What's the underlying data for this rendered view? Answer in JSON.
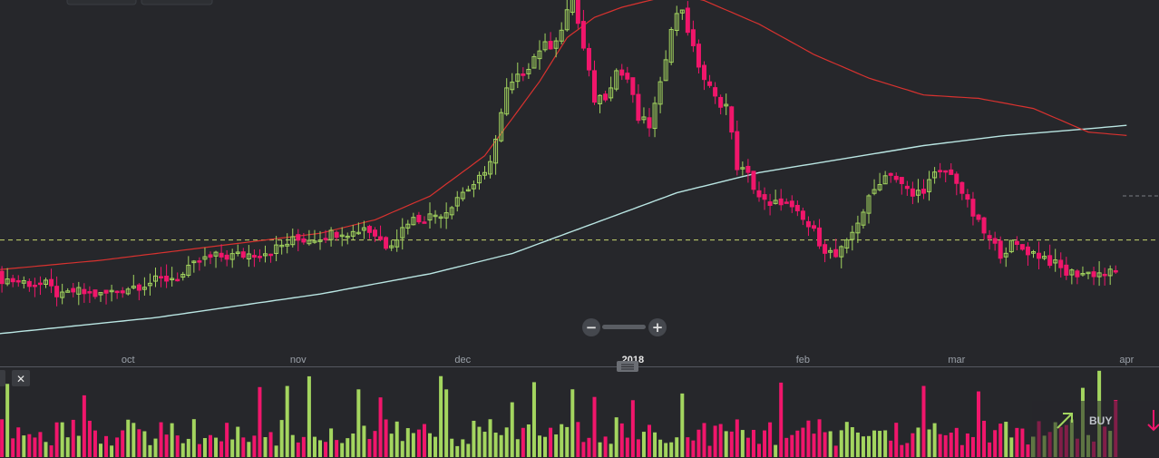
{
  "chart_data": {
    "type": "candlestick",
    "x_axis": {
      "tick_labels": [
        "oct",
        "nov",
        "dec",
        "2018",
        "feb",
        "mar",
        "apr"
      ],
      "tick_days": [
        25,
        56,
        86,
        117,
        148,
        176,
        207
      ],
      "bold_label": "2018"
    },
    "price_range": [
      0,
      100
    ],
    "reference_line_level": 31,
    "current_price_line_level": 32,
    "ma_fast": [
      [
        0,
        22
      ],
      [
        20,
        25
      ],
      [
        40,
        29
      ],
      [
        60,
        33
      ],
      [
        70,
        37
      ],
      [
        80,
        44
      ],
      [
        90,
        56
      ],
      [
        100,
        78
      ],
      [
        105,
        91
      ],
      [
        110,
        97
      ],
      [
        115,
        100
      ],
      [
        120,
        102
      ],
      [
        125,
        104
      ],
      [
        130,
        102
      ],
      [
        140,
        95
      ],
      [
        150,
        86
      ],
      [
        160,
        79
      ],
      [
        170,
        74
      ],
      [
        180,
        73
      ],
      [
        190,
        70
      ],
      [
        200,
        63
      ],
      [
        207,
        62
      ]
    ],
    "ma_slow": [
      [
        0,
        3
      ],
      [
        30,
        8
      ],
      [
        60,
        15
      ],
      [
        80,
        21
      ],
      [
        95,
        27
      ],
      [
        105,
        33
      ],
      [
        115,
        39
      ],
      [
        125,
        45
      ],
      [
        140,
        51
      ],
      [
        155,
        55
      ],
      [
        170,
        59
      ],
      [
        185,
        62
      ],
      [
        200,
        64
      ],
      [
        207,
        65
      ]
    ],
    "volume_scale_max": 100
  },
  "controls": {
    "zoom_out_symbol": "−",
    "zoom_in_symbol": "+",
    "close_symbol": "✕"
  },
  "trade": {
    "buy_label": "BUY"
  },
  "colors": {
    "background": "#26272b",
    "up": "#a3d55f",
    "down": "#f0166b",
    "ma_fast": "#d8322f",
    "ma_slow": "#b9e5e2",
    "ref_line": "#c7d66c",
    "axis_line": "#555860",
    "text": "#9aa0a8"
  }
}
